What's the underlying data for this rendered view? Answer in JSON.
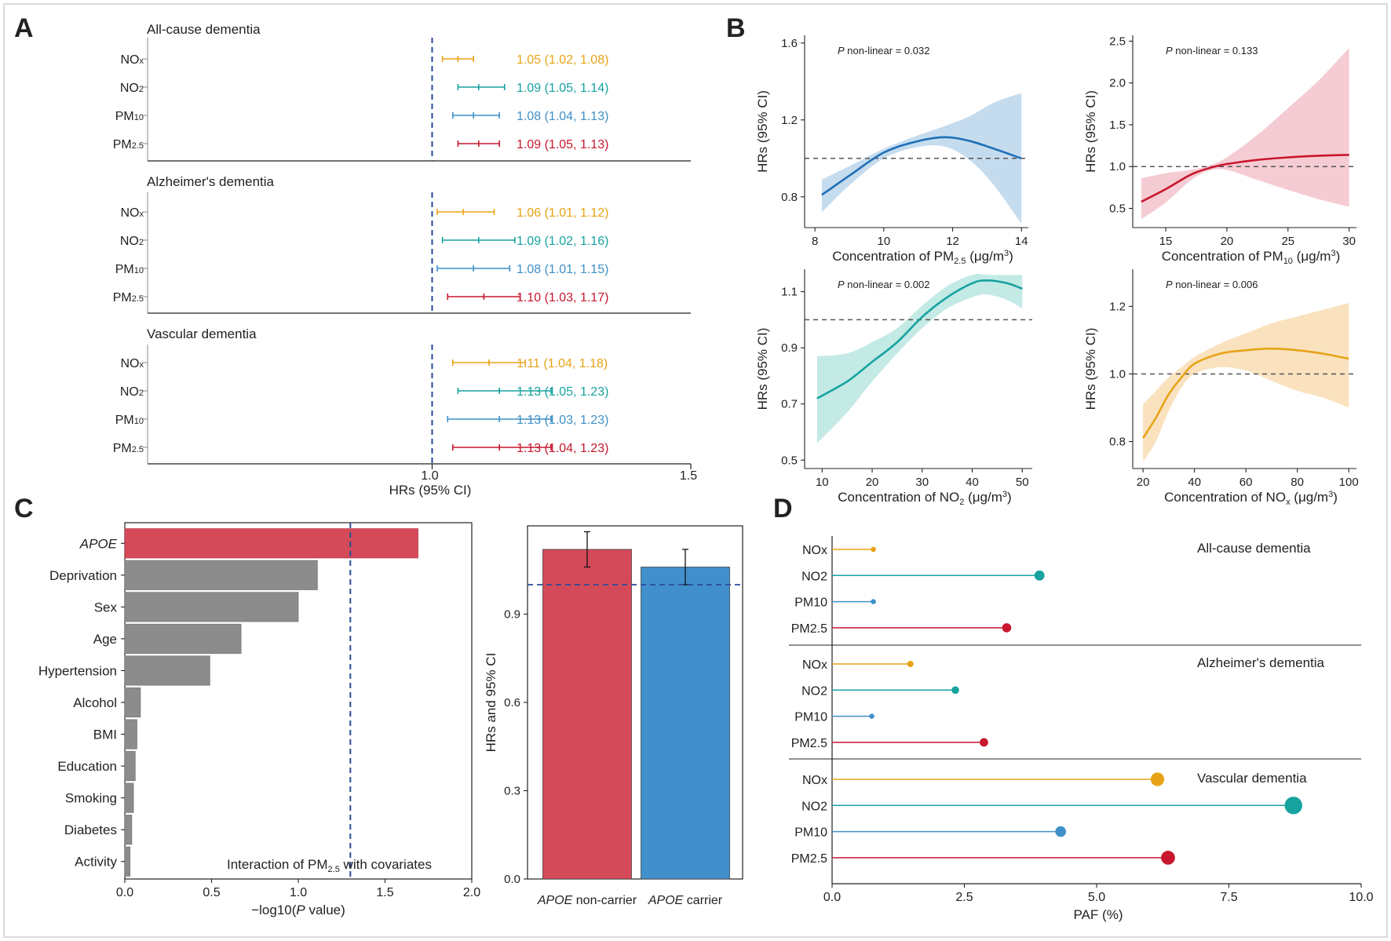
{
  "colors": {
    "nox": "#E8A317",
    "no2": "#17A2A0",
    "pm10": "#3E90C8",
    "pm25": "#C8172E",
    "gray": "#8c8c8c",
    "red_bar": "#D54A59",
    "blue_bar": "#418FCB",
    "ref_line": "#2A4A9A"
  },
  "chart_data": [
    {
      "panel": "A",
      "type": "forest",
      "xlabel": "HRs (95% CI)",
      "xlim": [
        0.45,
        1.5
      ],
      "xticks": [
        1.0,
        1.5
      ],
      "xtick_labels": [
        "1.0",
        "1.5"
      ],
      "reference": 1.0,
      "groups": [
        {
          "title": "All-cause dementia",
          "rows": [
            {
              "label": "NO",
              "sub": "x",
              "color": "nox",
              "hr": 1.05,
              "lo": 1.02,
              "hi": 1.08,
              "text": "1.05 (1.02, 1.08)"
            },
            {
              "label": "NO",
              "sub": "2",
              "color": "no2",
              "hr": 1.09,
              "lo": 1.05,
              "hi": 1.14,
              "text": "1.09 (1.05, 1.14)"
            },
            {
              "label": "PM",
              "sub": "10",
              "color": "pm10",
              "hr": 1.08,
              "lo": 1.04,
              "hi": 1.13,
              "text": "1.08 (1.04, 1.13)"
            },
            {
              "label": "PM",
              "sub": "2.5",
              "color": "pm25",
              "hr": 1.09,
              "lo": 1.05,
              "hi": 1.13,
              "text": "1.09 (1.05, 1.13)"
            }
          ]
        },
        {
          "title": "Alzheimer's dementia",
          "rows": [
            {
              "label": "NO",
              "sub": "x",
              "color": "nox",
              "hr": 1.06,
              "lo": 1.01,
              "hi": 1.12,
              "text": "1.06 (1.01, 1.12)"
            },
            {
              "label": "NO",
              "sub": "2",
              "color": "no2",
              "hr": 1.09,
              "lo": 1.02,
              "hi": 1.16,
              "text": "1.09 (1.02, 1.16)"
            },
            {
              "label": "PM",
              "sub": "10",
              "color": "pm10",
              "hr": 1.08,
              "lo": 1.01,
              "hi": 1.15,
              "text": "1.08 (1.01, 1.15)"
            },
            {
              "label": "PM",
              "sub": "2.5",
              "color": "pm25",
              "hr": 1.1,
              "lo": 1.03,
              "hi": 1.17,
              "text": "1.10 (1.03, 1.17)"
            }
          ]
        },
        {
          "title": "Vascular dementia",
          "rows": [
            {
              "label": "NO",
              "sub": "x",
              "color": "nox",
              "hr": 1.11,
              "lo": 1.04,
              "hi": 1.18,
              "text": "1.11 (1.04, 1.18)"
            },
            {
              "label": "NO",
              "sub": "2",
              "color": "no2",
              "hr": 1.13,
              "lo": 1.05,
              "hi": 1.23,
              "text": "1.13 (1.05, 1.23)"
            },
            {
              "label": "PM",
              "sub": "10",
              "color": "pm10",
              "hr": 1.13,
              "lo": 1.03,
              "hi": 1.23,
              "text": "1.13 (1.03, 1.23)"
            },
            {
              "label": "PM",
              "sub": "2.5",
              "color": "pm25",
              "hr": 1.13,
              "lo": 1.04,
              "hi": 1.23,
              "text": "1.13 (1.04, 1.23)"
            }
          ]
        }
      ]
    },
    {
      "panel": "B",
      "type": "line",
      "subplots": [
        {
          "id": "pm25",
          "color": "pm25",
          "curve_color": "#1F6FB5",
          "band_color": "#BBD6EC",
          "ylabel": "HRs (95% CI)",
          "xlabel_main": "Concentration of PM",
          "xlabel_sub": "2.5",
          "xlabel_tail": " (μg/m",
          "xlabel_sup": "3",
          "xlabel_end": ")",
          "p_text": "P non-linear = 0.032",
          "xlim": [
            7.7,
            14.2
          ],
          "ylim": [
            0.64,
            1.64
          ],
          "xticks": [
            8,
            10,
            12,
            14
          ],
          "yticks": [
            0.8,
            1.2,
            1.6
          ],
          "x": [
            8.2,
            9,
            10,
            11,
            11.8,
            12.5,
            13.2,
            14
          ],
          "y": [
            0.81,
            0.91,
            1.03,
            1.09,
            1.11,
            1.09,
            1.05,
            1.0
          ],
          "lo": [
            0.72,
            0.86,
            1.0,
            1.06,
            1.06,
            0.99,
            0.86,
            0.66
          ],
          "hi": [
            0.89,
            0.96,
            1.05,
            1.12,
            1.17,
            1.22,
            1.29,
            1.34
          ]
        },
        {
          "id": "pm10",
          "color": "pm25",
          "curve_color": "#C8172E",
          "band_color": "#F3C3CB",
          "ylabel": "HRs (95% CI)",
          "xlabel_main": "Concentration of PM",
          "xlabel_sub": "10",
          "xlabel_tail": " (μg/m",
          "xlabel_sup": "3",
          "xlabel_end": ")",
          "p_text": "P non-linear = 0.133",
          "xlim": [
            12.3,
            30.6
          ],
          "ylim": [
            0.27,
            2.57
          ],
          "xticks": [
            15,
            20,
            25,
            30
          ],
          "yticks": [
            0.5,
            1.0,
            1.5,
            2.0,
            2.5
          ],
          "x": [
            13,
            15,
            17,
            18.5,
            20,
            22.5,
            25,
            27.5,
            30
          ],
          "y": [
            0.58,
            0.73,
            0.9,
            0.98,
            1.03,
            1.08,
            1.11,
            1.13,
            1.14
          ],
          "lo": [
            0.37,
            0.57,
            0.83,
            0.95,
            0.96,
            0.84,
            0.72,
            0.61,
            0.52
          ],
          "hi": [
            0.86,
            0.92,
            0.96,
            1.01,
            1.11,
            1.38,
            1.7,
            2.03,
            2.42
          ]
        },
        {
          "id": "no2",
          "color": "no2",
          "curve_color": "#17A2A0",
          "band_color": "#B8E6E0",
          "ylabel": "HRs (95% CI)",
          "xlabel_main": "Concentration of NO",
          "xlabel_sub": "2",
          "xlabel_tail": " (μg/m",
          "xlabel_sup": "3",
          "xlabel_end": ")",
          "p_text": "P non-linear = 0.002",
          "xlim": [
            6.5,
            52
          ],
          "ylim": [
            0.47,
            1.18
          ],
          "xticks": [
            10,
            20,
            30,
            40,
            50
          ],
          "yticks": [
            0.5,
            0.7,
            0.9,
            1.1
          ],
          "x": [
            9,
            15,
            20,
            25,
            30,
            35,
            40,
            43,
            47,
            50
          ],
          "y": [
            0.72,
            0.78,
            0.85,
            0.92,
            1.01,
            1.08,
            1.13,
            1.14,
            1.13,
            1.11
          ],
          "lo": [
            0.56,
            0.67,
            0.78,
            0.88,
            0.97,
            1.04,
            1.08,
            1.09,
            1.07,
            1.04
          ],
          "hi": [
            0.87,
            0.88,
            0.92,
            0.97,
            1.05,
            1.12,
            1.16,
            1.16,
            1.16,
            1.16
          ]
        },
        {
          "id": "nox",
          "color": "nox",
          "curve_color": "#E8A317",
          "band_color": "#F9DDB4",
          "ylabel": "HRs (95% CI)",
          "xlabel_main": "Concentration of NO",
          "xlabel_sub": "x",
          "xlabel_tail": " (μg/m",
          "xlabel_sup": "3",
          "xlabel_end": ")",
          "p_text": "P non-linear = 0.006",
          "xlim": [
            16,
            103
          ],
          "ylim": [
            0.72,
            1.31
          ],
          "xticks": [
            20,
            40,
            60,
            80,
            100
          ],
          "yticks": [
            0.8,
            1.0,
            1.2
          ],
          "x": [
            20,
            25,
            30,
            35,
            40,
            50,
            60,
            70,
            80,
            90,
            100
          ],
          "y": [
            0.81,
            0.87,
            0.94,
            0.99,
            1.03,
            1.06,
            1.07,
            1.075,
            1.07,
            1.06,
            1.045
          ],
          "lo": [
            0.74,
            0.8,
            0.89,
            0.96,
            1.0,
            1.02,
            1.01,
            0.98,
            0.95,
            0.93,
            0.9
          ],
          "hi": [
            0.91,
            0.95,
            0.99,
            1.02,
            1.05,
            1.09,
            1.12,
            1.15,
            1.17,
            1.19,
            1.21
          ]
        }
      ]
    },
    {
      "panel": "C",
      "type": "bar",
      "orientation": "horizontal",
      "xlabel_pre": "−log10(",
      "xlabel_ital": "P",
      "xlabel_post": " value)",
      "xlim": [
        0,
        2.0
      ],
      "xticks": [
        0.0,
        0.5,
        1.0,
        1.5,
        2.0
      ],
      "xtick_labels": [
        "0.0",
        "0.5",
        "1.0",
        "1.5",
        "2.0"
      ],
      "threshold": 1.3,
      "annotation_pre": "Interaction of PM",
      "annotation_sub": "2.5",
      "annotation_post": " with covariates",
      "categories": [
        "APOE",
        "Deprivation",
        "Sex",
        "Age",
        "Hypertension",
        "Alcohol",
        "BMI",
        "Education",
        "Smoking",
        "Diabetes",
        "Activity"
      ],
      "values": [
        1.69,
        1.11,
        1.0,
        0.67,
        0.49,
        0.09,
        0.07,
        0.06,
        0.05,
        0.04,
        0.03
      ],
      "highlight": "APOE"
    },
    {
      "panel": "C2",
      "type": "bar",
      "ylabel": "HRs and 95% CI",
      "ylim": [
        0,
        1.2
      ],
      "yticks": [
        0.0,
        0.3,
        0.6,
        0.9
      ],
      "ytick_labels": [
        "0.0",
        "0.3",
        "0.6",
        "0.9"
      ],
      "reference": 1.0,
      "categories": [
        {
          "ital": "APOE",
          "rest": " non-carrier"
        },
        {
          "ital": "APOE",
          "rest": " carrier"
        }
      ],
      "values": [
        1.12,
        1.06
      ],
      "lo": [
        1.06,
        1.0
      ],
      "hi": [
        1.18,
        1.12
      ]
    },
    {
      "panel": "D",
      "type": "lollipop",
      "xlabel": "PAF (%)",
      "xlim": [
        0,
        10.0
      ],
      "xticks": [
        0.0,
        2.5,
        5.0,
        7.5,
        10.0
      ],
      "xtick_labels": [
        "0.0",
        "2.5",
        "5.0",
        "7.5",
        "10.0"
      ],
      "groups": [
        {
          "title": "All-cause dementia",
          "rows": [
            {
              "label": "NOx",
              "color": "nox",
              "value": 0.78
            },
            {
              "label": "NO2",
              "color": "no2",
              "value": 3.92
            },
            {
              "label": "PM10",
              "color": "pm10",
              "value": 0.78
            },
            {
              "label": "PM2.5",
              "color": "pm25",
              "value": 3.3
            }
          ]
        },
        {
          "title": "Alzheimer's dementia",
          "rows": [
            {
              "label": "NOx",
              "color": "nox",
              "value": 1.48
            },
            {
              "label": "NO2",
              "color": "no2",
              "value": 2.33
            },
            {
              "label": "PM10",
              "color": "pm10",
              "value": 0.75
            },
            {
              "label": "PM2.5",
              "color": "pm25",
              "value": 2.87
            }
          ]
        },
        {
          "title": "Vascular dementia",
          "rows": [
            {
              "label": "NOx",
              "color": "nox",
              "value": 6.15
            },
            {
              "label": "NO2",
              "color": "no2",
              "value": 8.72
            },
            {
              "label": "PM10",
              "color": "pm10",
              "value": 4.32
            },
            {
              "label": "PM2.5",
              "color": "pm25",
              "value": 6.35
            }
          ]
        }
      ]
    }
  ],
  "panel_labels": {
    "A": "A",
    "B": "B",
    "C": "C",
    "D": "D"
  }
}
